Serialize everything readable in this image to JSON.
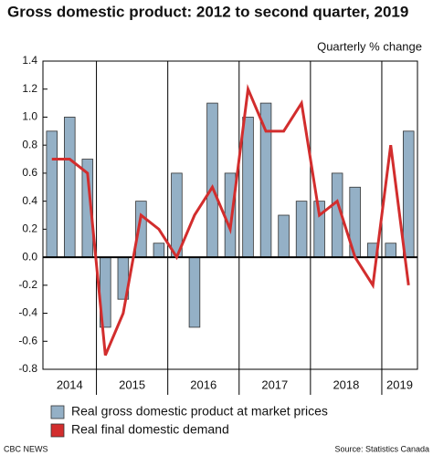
{
  "chart_data": {
    "type": "bar_line",
    "title": "Gross domestic product: 2012 to second quarter, 2019",
    "subtitle": "Quarterly % change",
    "categories": [
      "2014",
      null,
      null,
      "2015",
      null,
      null,
      null,
      "2016",
      null,
      null,
      null,
      "2017",
      null,
      null,
      null,
      "2018",
      null,
      null,
      null,
      "2019",
      null
    ],
    "series": [
      {
        "name": "Real gross domestic product at market prices",
        "kind": "bar",
        "color": "#94b0c6",
        "values": [
          0.9,
          1.0,
          0.7,
          -0.5,
          -0.3,
          0.4,
          0.1,
          0.6,
          -0.5,
          1.1,
          0.6,
          1.0,
          1.1,
          0.3,
          0.4,
          0.4,
          0.6,
          0.5,
          0.1,
          0.1,
          0.9
        ]
      },
      {
        "name": "Real final domestic demand",
        "kind": "line",
        "color": "#d22d2d",
        "values": [
          0.7,
          0.7,
          0.6,
          -0.7,
          -0.4,
          0.3,
          0.2,
          0.0,
          0.3,
          0.5,
          0.2,
          1.2,
          0.9,
          0.9,
          1.1,
          0.3,
          0.4,
          0.0,
          -0.2,
          0.8,
          -0.2
        ]
      }
    ],
    "ylim": [
      -0.8,
      1.4
    ],
    "yticks": [
      1.4,
      1.2,
      {
        "value": 1,
        "label": "1.0"
      },
      0.8,
      0.6,
      0.4,
      0.2,
      {
        "value": 0,
        "label": "0.0"
      },
      -0.2,
      -0.4,
      -0.6,
      -0.8
    ],
    "source": "Source: Statistics Canada",
    "credit": "CBC NEWS"
  }
}
